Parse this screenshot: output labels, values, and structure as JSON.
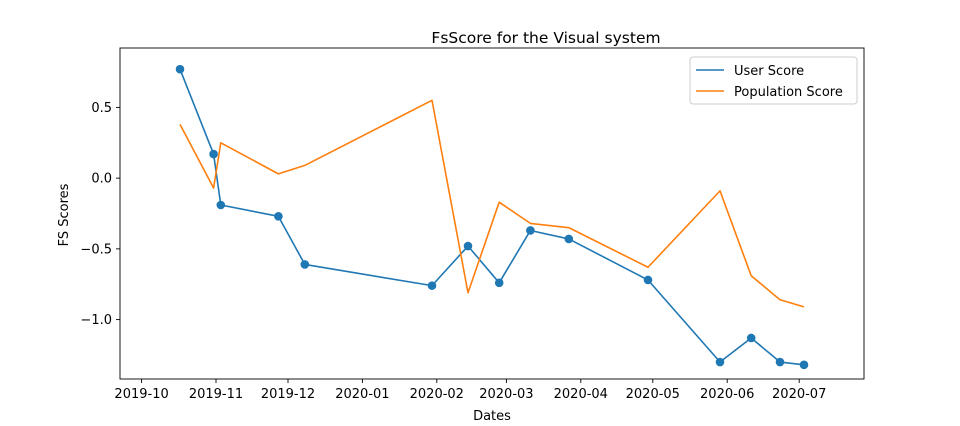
{
  "chart_data": {
    "type": "line",
    "title": "FsScore for the Visual system",
    "xlabel": "Dates",
    "ylabel": "FS Scores",
    "x_ticks": [
      "2019-10-01",
      "2019-11-01",
      "2019-12-01",
      "2020-01-01",
      "2020-02-01",
      "2020-03-01",
      "2020-04-01",
      "2020-05-01",
      "2020-06-01",
      "2020-07-01"
    ],
    "x_tick_labels": [
      "2019-10",
      "2019-11",
      "2019-12",
      "2020-01",
      "2020-02",
      "2020-03",
      "2020-04",
      "2020-05",
      "2020-06",
      "2020-07"
    ],
    "y_ticks": [
      -1.0,
      -0.5,
      0.0,
      0.5
    ],
    "y_tick_labels": [
      "−1.0",
      "−0.5",
      "0.0",
      "0.5"
    ],
    "xlim": [
      "2019-09-22",
      "2020-07-28"
    ],
    "ylim": [
      -1.42,
      0.92
    ],
    "grid": false,
    "legend_position": "upper right",
    "series": [
      {
        "name": "User Score",
        "color": "#1f77b4",
        "markers": true,
        "x": [
          "2019-10-17",
          "2019-10-31",
          "2019-11-03",
          "2019-11-27",
          "2019-12-08",
          "2020-01-30",
          "2020-02-14",
          "2020-02-27",
          "2020-03-11",
          "2020-03-27",
          "2020-04-29",
          "2020-05-29",
          "2020-06-11",
          "2020-06-23",
          "2020-07-03"
        ],
        "y": [
          0.77,
          0.17,
          -0.19,
          -0.27,
          -0.61,
          -0.76,
          -0.48,
          -0.74,
          -0.37,
          -0.43,
          -0.72,
          -1.3,
          -1.13,
          -1.3,
          -1.32
        ]
      },
      {
        "name": "Population Score",
        "color": "#ff7f0e",
        "markers": false,
        "x": [
          "2019-10-17",
          "2019-10-31",
          "2019-11-03",
          "2019-11-27",
          "2019-12-08",
          "2020-01-30",
          "2020-02-14",
          "2020-02-27",
          "2020-03-11",
          "2020-03-27",
          "2020-04-29",
          "2020-05-29",
          "2020-06-11",
          "2020-06-23",
          "2020-07-03"
        ],
        "y": [
          0.38,
          -0.07,
          0.25,
          0.03,
          0.09,
          0.55,
          -0.81,
          -0.17,
          -0.32,
          -0.35,
          -0.63,
          -0.09,
          -0.69,
          -0.86,
          -0.91
        ]
      }
    ]
  }
}
